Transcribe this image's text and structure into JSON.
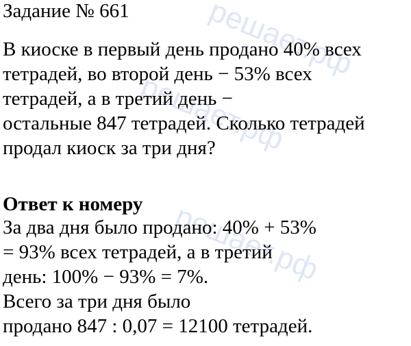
{
  "watermark": "решает.рф",
  "title": "Задание № 661",
  "task_lines": [
    "В киоске в первый день продано 40% всех",
    "тетрадей, во второй день − 53% всех",
    "тетрадей, а в третий день −",
    "остальные 847 тетрадей. Сколько тетрадей",
    "продал киоск за три дня?"
  ],
  "answer_heading": "Ответ к номеру",
  "answer_lines": [
    "За два дня было продано: 40% + 53%",
    "= 93% всех тетрадей, а в третий",
    "день: 100% − 93% = 7%.",
    "Всего за три дня было",
    "продано 847 : 0,07 = 12100 тетрадей."
  ]
}
